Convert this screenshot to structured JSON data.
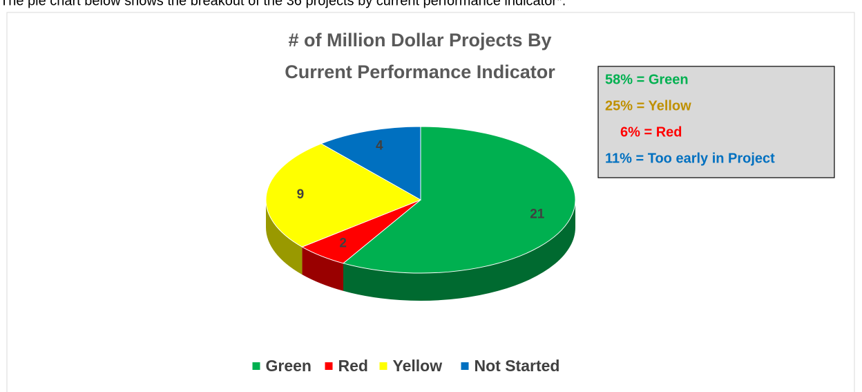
{
  "intro": "The pie chart below shows the breakout of the 36 projects by current performance indicator*.",
  "chart_data": {
    "type": "pie",
    "title": [
      "# of Million Dollar Projects By",
      "Current Performance Indicator"
    ],
    "categories": [
      "Green",
      "Red",
      "Yellow",
      "Not Started"
    ],
    "values": [
      21,
      2,
      9,
      4
    ],
    "colors": [
      "#00b050",
      "#ff0000",
      "#ffff00",
      "#0070c0"
    ],
    "legend": "bottom",
    "annotations": [
      {
        "text": "58% = Green",
        "color": "#00b050"
      },
      {
        "text": "25% = Yellow",
        "color": "#bf9000"
      },
      {
        "text": "6% = Red",
        "color": "#ff0000"
      },
      {
        "text": "11% = Too early in Project",
        "color": "#0070c0"
      }
    ]
  }
}
